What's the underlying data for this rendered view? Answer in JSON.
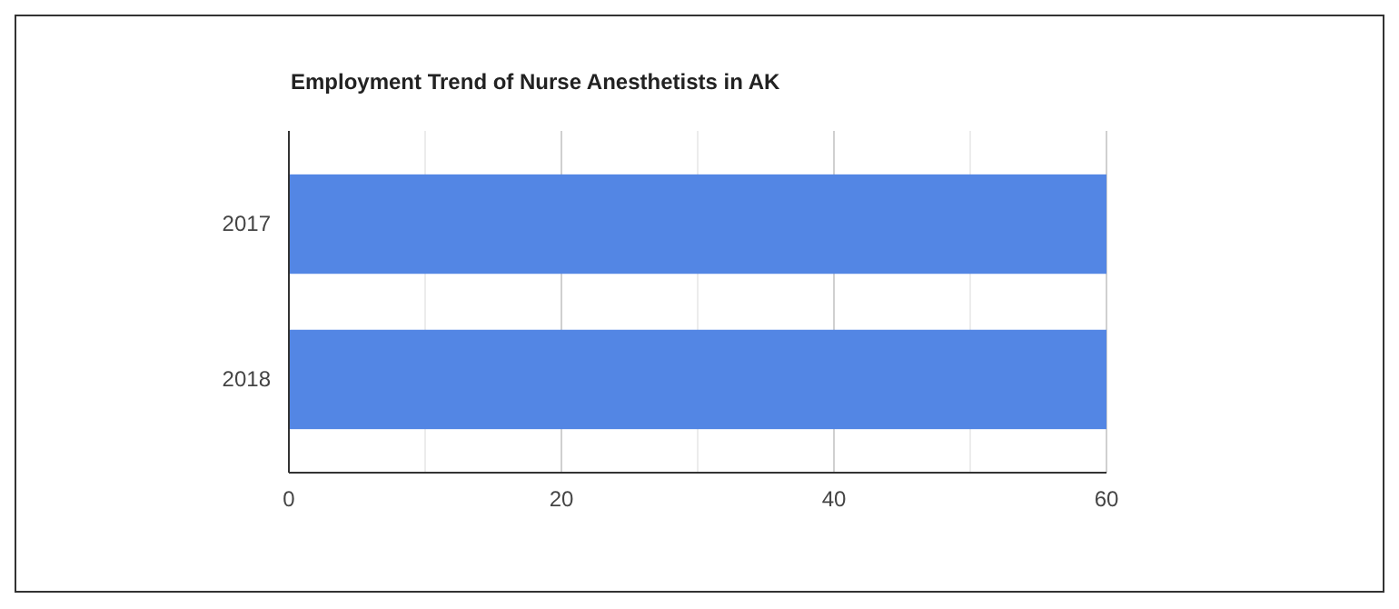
{
  "chart_data": {
    "type": "bar",
    "orientation": "horizontal",
    "title": "Employment Trend of Nurse Anesthetists in AK",
    "categories": [
      "2017",
      "2018"
    ],
    "values": [
      60,
      60
    ],
    "color": "#5386e4",
    "xlim": [
      0,
      60
    ],
    "xticks": [
      0,
      {
        "value": 10,
        "label": null
      },
      20,
      {
        "value": 30,
        "label": null
      },
      40,
      {
        "value": 50,
        "label": null
      },
      60
    ],
    "grid": "x"
  }
}
